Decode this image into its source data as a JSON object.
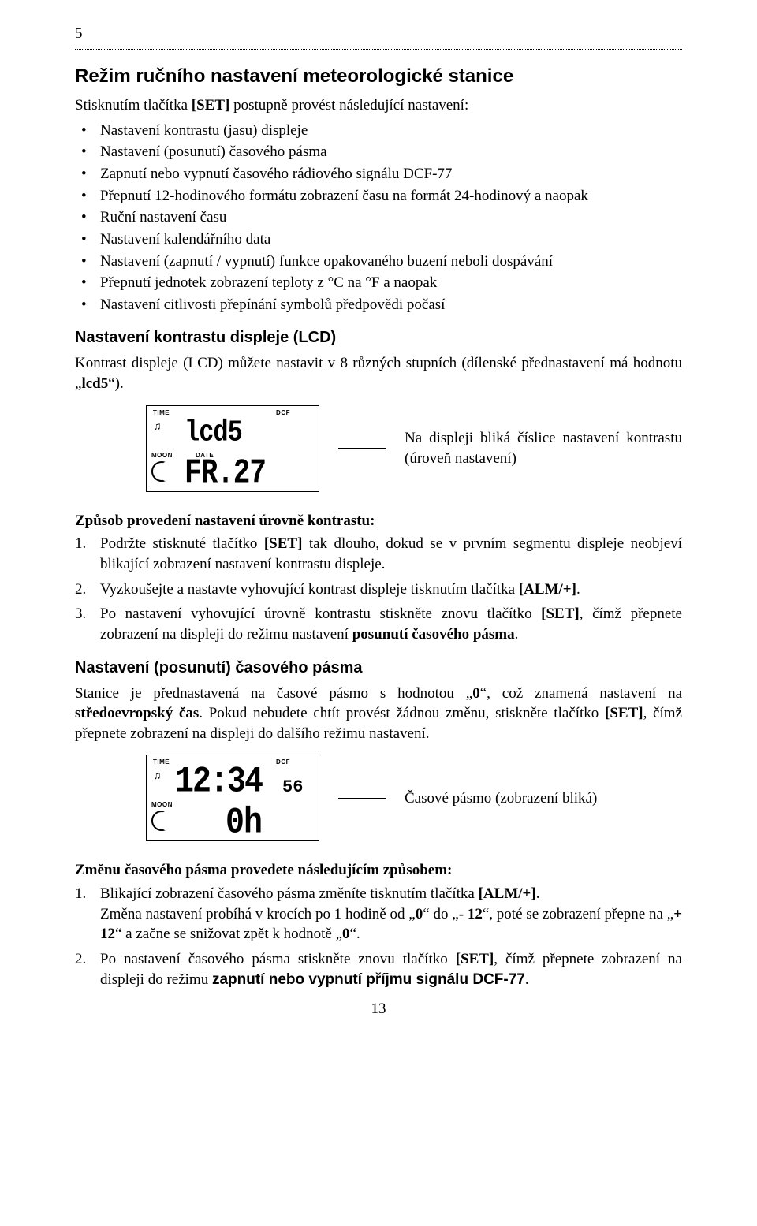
{
  "pageTopNumber": "5",
  "h1": "Režim ručního nastavení meteorologické stanice",
  "introPara": "Stisknutím tlačítka <b>[SET]</b> postupně provést následující nastavení:",
  "bullets": [
    "Nastavení kontrastu (jasu) displeje",
    "Nastavení (posunutí) časového pásma",
    "Zapnutí nebo vypnutí časového rádiového signálu DCF-77",
    "Přepnutí 12-hodinového formátu zobrazení času na formát 24-hodinový a naopak",
    "Ruční nastavení času",
    "Nastavení kalendářního data",
    "Nastavení (zapnutí / vypnutí) funkce opakovaného buzení neboli dospávání",
    "Přepnutí jednotek zobrazení teploty z °C na °F a naopak",
    "Nastavení citlivosti přepínání symbolů předpovědi počasí"
  ],
  "h2a": "Nastavení kontrastu displeje (LCD)",
  "paraContrast": "Kontrast displeje (LCD) můžete nastavit v 8 různých stupních (dílenské přednastavení má hodnotu „<b>lcd5</b>“).",
  "lcd1": {
    "top": "lcd5",
    "bottom": "FR.27",
    "labels": {
      "time": "TIME",
      "dcf": "DCF",
      "moon": "MOON",
      "date": "DATE"
    }
  },
  "captionContrast": "Na displeji bliká číslice nastavení kontrastu (úroveň nastavení)",
  "stepsHeaderA": "Způsob provedení nastavení úrovně kontrastu:",
  "stepsA": [
    "Podržte stisknuté tlačítko <b>[SET]</b> tak dlouho, dokud se v prvním segmentu displeje neobjeví  blikající zobrazení nastavení kontrastu displeje.",
    "Vyzkoušejte a nastavte vyhovující kontrast displeje tisknutím tlačítka <b>[ALM/+]</b>.",
    "Po nastavení vyhovující úrovně kontrastu stiskněte znovu tlačítko <b>[SET]</b>, čímž přepnete zobrazení na displeji do režimu nastavení <b>posunutí časového pásma</b>."
  ],
  "h2b": "Nastavení (posunutí) časového pásma",
  "paraTZ": "Stanice je přednastavená na časové pásmo s hodnotou „<b>0</b>“, což znamená nastavení na <b>středoevropský čas</b>. Pokud nebudete chtít provést žádnou změnu, stiskněte tlačítko <b>[SET]</b>, čímž přepnete zobrazení na displeji do dalšího režimu nastavení.",
  "lcd2": {
    "top": "12:34",
    "sub": "56",
    "bottom": "0h",
    "labels": {
      "time": "TIME",
      "dcf": "DCF",
      "moon": "MOON"
    }
  },
  "captionTZ": "Časové pásmo (zobrazení bliká)",
  "stepsHeaderB": "Změnu časového pásma provedete následujícím způsobem:",
  "stepsB": [
    "Blikající zobrazení časového pásma změníte tisknutím tlačítka <b>[ALM/+]</b>.<br>Změna nastavení probíhá v krocích po 1 hodině od „<b>0</b>“ do „<b>- 12</b>“, poté se zobrazení přepne na „<b>+ 12</b>“ a začne se snižovat zpět k hodnotě „<b>0</b>“.",
    "Po nastavení časového pásma stiskněte znovu tlačítko <b>[SET]</b>, čímž přepnete zobrazení na displeji do režimu <span class=\"sans-inline\">zapnutí nebo vypnutí příjmu signálu DCF-77</span>."
  ],
  "pageBottomNumber": "13"
}
